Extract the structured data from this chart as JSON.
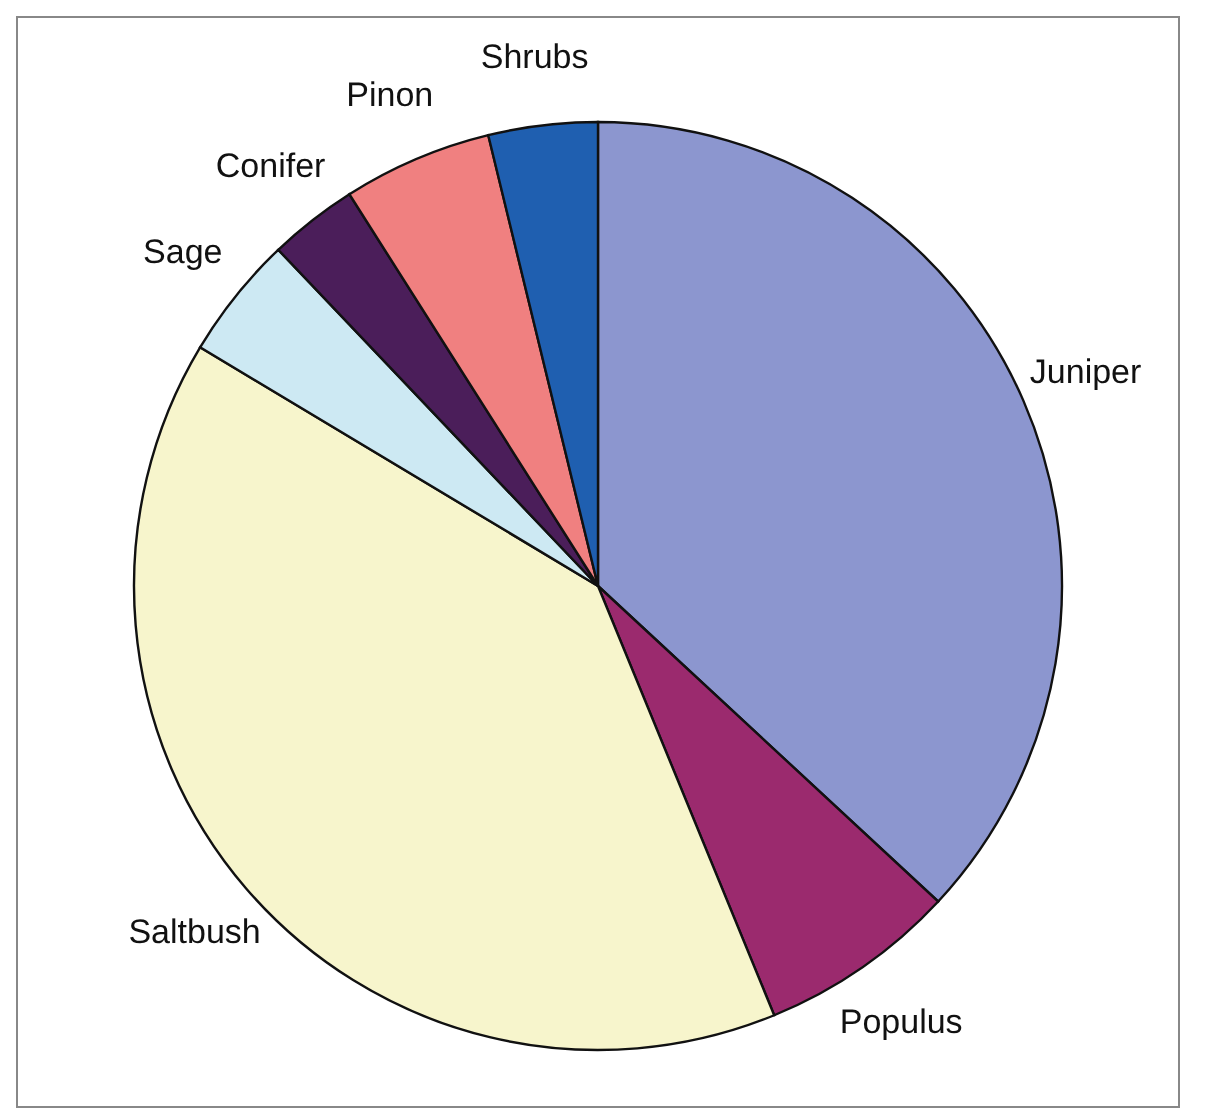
{
  "chart_data": {
    "type": "pie",
    "categories": [
      "Juniper",
      "Populus",
      "Saltbush",
      "Sage",
      "Conifer",
      "Pinon",
      "Shrubs"
    ],
    "values": [
      36.9,
      6.9,
      39.8,
      4.3,
      3.1,
      5.2,
      3.8
    ],
    "colors": [
      "#8c96cf",
      "#9b2a6e",
      "#f7f5cc",
      "#cde9f3",
      "#4b1e5a",
      "#f08080",
      "#1f5fb0"
    ],
    "legend": false
  }
}
